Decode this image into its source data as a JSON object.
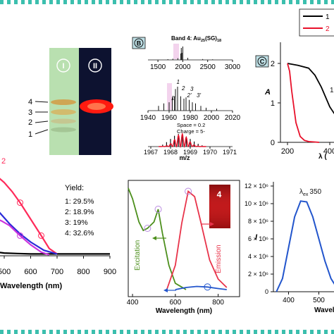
{
  "panel_labels": {
    "b": "B",
    "c": "C",
    "gel_lane_1": "I",
    "gel_lane_2": "II",
    "emission_inset": "4"
  },
  "gel": {
    "band_labels": [
      "4",
      "3",
      "2",
      "1"
    ],
    "colors": {
      "lane1_bg": "#b9e0b0",
      "lane2_bg": "#0d1230",
      "band_emission": "#ff1a10"
    }
  },
  "uv_vis_left": {
    "xlabel": "Wavelength (nm)",
    "xticks": [
      "500",
      "600",
      "700",
      "800",
      "900"
    ],
    "band2_label": "2",
    "yield": {
      "title": "Yield:",
      "items": [
        "1: 29.5%",
        "2: 18.9%",
        "3: 19%",
        "4: 32.6%"
      ]
    }
  },
  "ms": {
    "title_prefix": "Band 4: Au",
    "title_sub1": "25",
    "title_mid": "(SG)",
    "title_sub2": "18",
    "top_xticks": [
      "1500",
      "2000",
      "2500",
      "3000"
    ],
    "mid_xticks": [
      "1940",
      "1960",
      "1980",
      "2000",
      "2020"
    ],
    "mid_labels": [
      "1'",
      "1",
      "2",
      "2'",
      "3",
      "3'"
    ],
    "bottom_xticks": [
      "1967",
      "1968",
      "1969",
      "1970",
      "1971"
    ],
    "annotations": [
      "Space = 0.2",
      "Charge = 5-"
    ],
    "xlabel": "m/z"
  },
  "c_panel": {
    "ylabel": "A",
    "yticks": [
      "0",
      "1",
      "2"
    ],
    "xticks": [
      "200",
      "400",
      "6"
    ],
    "xlabel": "λ (",
    "legend": [
      "1",
      "2"
    ],
    "side_label": "1"
  },
  "pl": {
    "xlabel": "Wavelength (nm)",
    "xticks": [
      "400",
      "600",
      "800"
    ],
    "excitation_label": "Excitation",
    "emission_label": "Emission"
  },
  "right_bottom": {
    "ylabel": "I",
    "yticks": [
      "12 × 10⁶",
      "10 × 10⁶",
      "8 × 10⁶",
      "6 × 10⁶",
      "4 × 10⁶",
      "2 × 10⁶",
      "0"
    ],
    "xticks": [
      "400",
      "500"
    ],
    "xlabel": "Wavele",
    "lambda_label": "λ",
    "lambda_sub": "ex",
    "lambda_value": "350"
  },
  "chart_data": [
    {
      "type": "line",
      "panel": "uv-vis absorption of gel bands",
      "xlabel": "Wavelength (nm)",
      "xlim": [
        430,
        900
      ],
      "series": [
        {
          "name": "1",
          "color": "#000000",
          "x": [
            430,
            450,
            470,
            500,
            550,
            600,
            700,
            800,
            900
          ],
          "values": [
            0.1,
            0.06,
            0.04,
            0.03,
            0.025,
            0.02,
            0.02,
            0.02,
            0.02
          ]
        },
        {
          "name": "2",
          "color": "#ff2a5a",
          "x": [
            430,
            460,
            500,
            530,
            560,
            600,
            640,
            670,
            700
          ],
          "values": [
            0.95,
            0.9,
            0.8,
            0.7,
            0.58,
            0.4,
            0.22,
            0.08,
            0.02
          ]
        },
        {
          "name": "3",
          "color": "#2b2bd8",
          "x": [
            430,
            450,
            480,
            520,
            560,
            600,
            650,
            700
          ],
          "values": [
            0.68,
            0.62,
            0.48,
            0.35,
            0.24,
            0.15,
            0.06,
            0.02
          ]
        },
        {
          "name": "4",
          "color": "#cc33dd",
          "x": [
            430,
            460,
            490,
            520,
            560,
            600,
            640,
            670
          ],
          "values": [
            0.45,
            0.42,
            0.38,
            0.33,
            0.22,
            0.12,
            0.04,
            0.01
          ]
        }
      ]
    },
    {
      "type": "line",
      "panel": "mass spectrum",
      "xlabel": "m/z",
      "xlim": [
        1967,
        1971
      ],
      "series": [
        {
          "name": "isotope pattern",
          "color": "#e8102a",
          "x": [
            1967.6,
            1967.8,
            1968.0,
            1968.2,
            1968.4,
            1968.6,
            1968.8,
            1969.0,
            1969.2,
            1969.4,
            1969.6
          ],
          "values": [
            0.15,
            0.35,
            0.6,
            0.85,
            1.0,
            0.95,
            0.8,
            0.6,
            0.4,
            0.22,
            0.1
          ]
        }
      ]
    },
    {
      "type": "line",
      "panel": "photoluminescence",
      "xlabel": "Wavelength (nm)",
      "xlim": [
        380,
        900
      ],
      "series": [
        {
          "name": "Excitation",
          "color": "#4c8f1c",
          "x": [
            380,
            400,
            430,
            450,
            470,
            500,
            520,
            540,
            570,
            600,
            650
          ],
          "values": [
            0.98,
            0.88,
            0.66,
            0.58,
            0.6,
            0.66,
            0.78,
            0.55,
            0.25,
            0.08,
            0.02
          ]
        },
        {
          "name": "Emission",
          "color": "#e8334a",
          "x": [
            560,
            600,
            630,
            660,
            690,
            720,
            760,
            800,
            840
          ],
          "values": [
            0.02,
            0.25,
            0.65,
            0.95,
            0.9,
            0.65,
            0.3,
            0.12,
            0.04
          ]
        },
        {
          "name": "3",
          "color": "#2255cc",
          "x": [
            600,
            650,
            700,
            750,
            800,
            840
          ],
          "values": [
            0.02,
            0.04,
            0.05,
            0.045,
            0.03,
            0.02
          ]
        }
      ]
    },
    {
      "type": "line",
      "panel": "c-absorbance",
      "ylabel": "A",
      "ylim": [
        0,
        2
      ],
      "series": [
        {
          "name": "1",
          "color": "#000000",
          "x": [
            200,
            250,
            300,
            330,
            360,
            400,
            450,
            500,
            550
          ],
          "values": [
            2.0,
            1.95,
            1.88,
            1.7,
            1.4,
            0.9,
            0.5,
            0.22,
            0.08
          ]
        },
        {
          "name": "2",
          "color": "#e8102a",
          "x": [
            200,
            210,
            220,
            240,
            260,
            280,
            300,
            350
          ],
          "values": [
            2.0,
            1.8,
            1.3,
            0.5,
            0.15,
            0.05,
            0.02,
            0.0
          ]
        }
      ]
    },
    {
      "type": "line",
      "panel": "emission intensity",
      "ylabel": "I",
      "ylim": [
        0,
        12000000
      ],
      "series": [
        {
          "name": "λex 350",
          "color": "#2255cc",
          "x": [
            360,
            380,
            400,
            420,
            440,
            460,
            480,
            500,
            520,
            540,
            560
          ],
          "values": [
            0,
            1500000,
            5000000,
            8500000,
            10300000,
            10200000,
            8500000,
            6000000,
            3500000,
            1500000,
            400000
          ]
        }
      ]
    }
  ]
}
